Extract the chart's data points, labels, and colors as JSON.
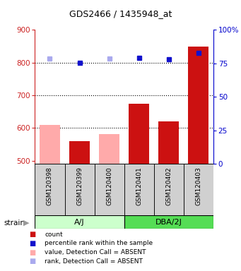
{
  "title": "GDS2466 / 1435948_at",
  "samples": [
    "GSM120398",
    "GSM120399",
    "GSM120400",
    "GSM120401",
    "GSM120402",
    "GSM120403"
  ],
  "count_values": [
    null,
    560,
    null,
    675,
    620,
    848
  ],
  "count_absent_values": [
    610,
    null,
    582,
    null,
    null,
    null
  ],
  "percentile_values": [
    null,
    800,
    null,
    815,
    810,
    830
  ],
  "percentile_absent_values": [
    813,
    null,
    812,
    null,
    null,
    null
  ],
  "ylim_left": [
    490,
    900
  ],
  "ylim_right": [
    0,
    100
  ],
  "yticks_left": [
    500,
    600,
    700,
    800,
    900
  ],
  "yticks_right": [
    0,
    25,
    50,
    75,
    100
  ],
  "count_color": "#cc1111",
  "count_absent_color": "#ffaaaa",
  "percentile_color": "#1111cc",
  "percentile_absent_color": "#aaaaee",
  "left_tick_color": "#cc2222",
  "right_tick_color": "#0000cc",
  "bar_bg_color": "#d0d0d0",
  "aj_color": "#ccffcc",
  "dba_color": "#55dd55",
  "grid_dotted_color": "#000000"
}
